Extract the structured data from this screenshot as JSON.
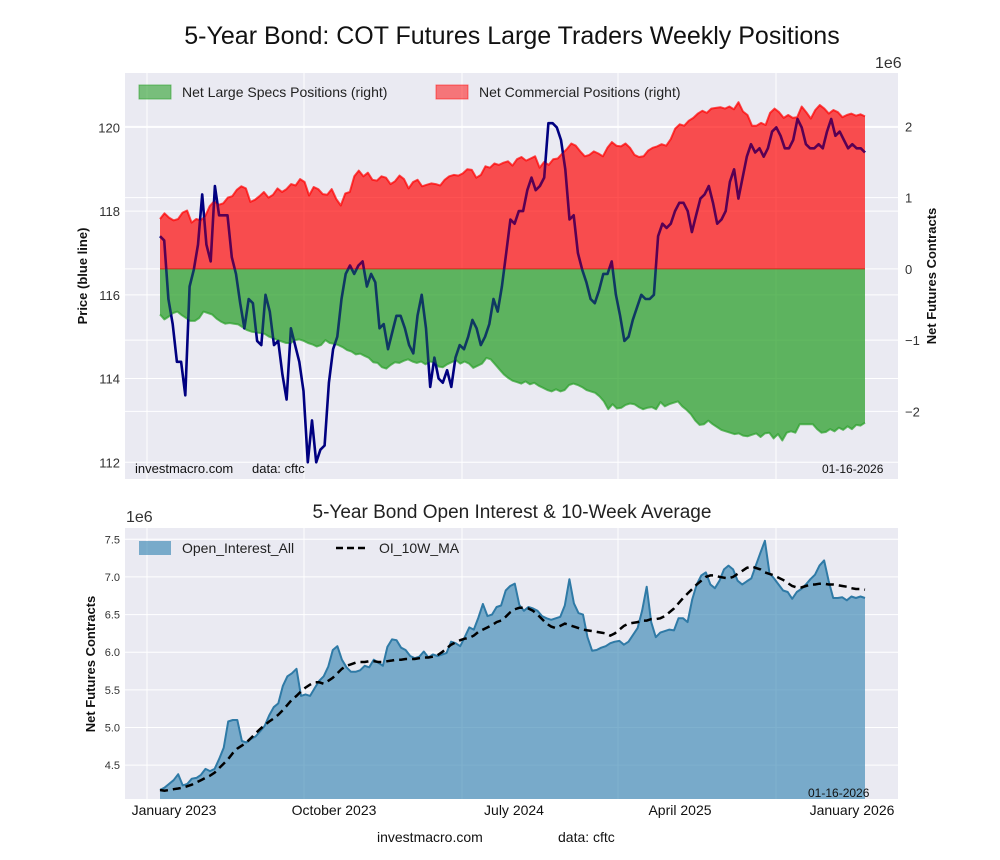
{
  "title": "5-Year Bond: COT Futures Large Traders Weekly Positions",
  "watermark": "investmacro.com",
  "data_source": "data: cftc",
  "date_stamp": "01-16-2026",
  "x_tick_labels": [
    "January 2023",
    "October 2023",
    "July 2024",
    "April 2025",
    "January 2026"
  ],
  "colors": {
    "price_line": "#000080",
    "large_specs": "#2ca02c",
    "commercial": "#ff0000",
    "open_interest": "#3a87b4",
    "ma": "#000000",
    "plot_bg": "#eaeaf2"
  },
  "chart_data": [
    {
      "type": "area",
      "title": "5-Year Bond: COT Futures Large Traders Weekly Positions",
      "ylabel_left": "Price (blue line)",
      "ylabel_right": "Net Futures Contracts",
      "right_axis_multiplier": "1e6",
      "ylim_left": [
        111.6,
        121.3
      ],
      "ylim_right": [
        -2.95,
        2.75
      ],
      "yticks_left": [
        "112",
        "114",
        "116",
        "118",
        "120"
      ],
      "yticks_right": [
        "-2",
        "-1",
        "0",
        "1",
        "2"
      ],
      "grid": true,
      "legend": {
        "position": "top-left",
        "entries": [
          "Net Large Specs Positions (right)",
          "Net Commercial Positions (right)"
        ]
      },
      "x_range": [
        "2023-01-03",
        "2026-01-13"
      ],
      "series": [
        {
          "name": "Net Commercial Positions (right)",
          "unit": "1e6 contracts",
          "values": [
            0.7,
            0.78,
            0.72,
            0.68,
            0.7,
            0.79,
            0.82,
            0.65,
            0.7,
            0.68,
            0.74,
            0.88,
            0.95,
            0.9,
            0.92,
            1.0,
            1.02,
            1.11,
            1.16,
            1.13,
            0.94,
            0.97,
            1.02,
            1.08,
            1.0,
            1.04,
            1.13,
            1.08,
            1.12,
            1.19,
            1.17,
            1.26,
            1.22,
            1.03,
            1.15,
            1.12,
            1.05,
            1.04,
            1.12,
            0.98,
            0.89,
            1.06,
            1.08,
            1.3,
            1.38,
            1.3,
            1.35,
            1.25,
            1.24,
            1.3,
            1.28,
            1.19,
            1.23,
            1.31,
            1.26,
            1.13,
            1.22,
            1.25,
            1.16,
            1.18,
            1.2,
            1.19,
            1.17,
            1.25,
            1.3,
            1.32,
            1.31,
            1.34,
            1.4,
            1.39,
            1.28,
            1.32,
            1.44,
            1.42,
            1.48,
            1.46,
            1.49,
            1.51,
            1.45,
            1.54,
            1.57,
            1.52,
            1.55,
            1.58,
            1.42,
            1.5,
            1.46,
            1.54,
            1.55,
            1.62,
            1.68,
            1.76,
            1.73,
            1.65,
            1.58,
            1.6,
            1.65,
            1.62,
            1.58,
            1.7,
            1.78,
            1.73,
            1.72,
            1.76,
            1.7,
            1.6,
            1.57,
            1.58,
            1.66,
            1.7,
            1.72,
            1.75,
            1.73,
            1.82,
            1.97,
            2.03,
            2.01,
            2.08,
            2.12,
            2.18,
            2.22,
            2.19,
            2.25,
            2.26,
            2.27,
            2.25,
            2.28,
            2.24,
            2.34,
            2.21,
            2.16,
            2.01,
            2.01,
            2.05,
            2.02,
            2.19,
            2.25,
            2.2,
            2.12,
            2.16,
            2.12,
            2.13,
            2.28,
            2.2,
            2.11,
            2.23,
            2.3,
            2.25,
            2.18,
            2.23,
            2.2,
            2.13,
            2.16,
            2.18,
            2.15,
            2.17,
            2.14
          ]
        },
        {
          "name": "Net Large Specs Positions (right)",
          "unit": "1e6 contracts",
          "values": [
            -0.64,
            -0.71,
            -0.67,
            -0.62,
            -0.6,
            -0.65,
            -0.69,
            -0.73,
            -0.73,
            -0.69,
            -0.6,
            -0.62,
            -0.64,
            -0.7,
            -0.74,
            -0.77,
            -0.76,
            -0.77,
            -0.78,
            -0.82,
            -0.86,
            -0.88,
            -0.89,
            -0.9,
            -0.91,
            -0.95,
            -0.97,
            -1.0,
            -1.02,
            -1.04,
            -1.04,
            -1.0,
            -0.99,
            -1.01,
            -1.04,
            -1.06,
            -1.09,
            -1.07,
            -1.0,
            -1.04,
            -1.05,
            -1.07,
            -1.1,
            -1.14,
            -1.16,
            -1.2,
            -1.19,
            -1.22,
            -1.25,
            -1.31,
            -1.32,
            -1.38,
            -1.4,
            -1.35,
            -1.31,
            -1.32,
            -1.29,
            -1.27,
            -1.3,
            -1.32,
            -1.3,
            -1.34,
            -1.3,
            -1.31,
            -1.37,
            -1.38,
            -1.34,
            -1.31,
            -1.28,
            -1.33,
            -1.3,
            -1.33,
            -1.39,
            -1.36,
            -1.33,
            -1.25,
            -1.27,
            -1.34,
            -1.41,
            -1.48,
            -1.53,
            -1.57,
            -1.59,
            -1.61,
            -1.58,
            -1.62,
            -1.6,
            -1.64,
            -1.67,
            -1.7,
            -1.72,
            -1.69,
            -1.72,
            -1.7,
            -1.63,
            -1.61,
            -1.63,
            -1.66,
            -1.7,
            -1.72,
            -1.74,
            -1.79,
            -1.86,
            -1.97,
            -1.9,
            -1.96,
            -1.95,
            -1.91,
            -1.89,
            -1.9,
            -1.94,
            -1.97,
            -1.95,
            -1.94,
            -1.97,
            -1.87,
            -1.93,
            -1.9,
            -1.88,
            -1.86,
            -1.93,
            -1.98,
            -2.04,
            -2.13,
            -2.19,
            -2.18,
            -2.13,
            -2.18,
            -2.22,
            -2.26,
            -2.28,
            -2.3,
            -2.32,
            -2.31,
            -2.34,
            -2.35,
            -2.33,
            -2.31,
            -2.36,
            -2.31,
            -2.3,
            -2.38,
            -2.32,
            -2.41,
            -2.3,
            -2.28,
            -2.3,
            -2.18,
            -2.18,
            -2.18,
            -2.18,
            -2.25,
            -2.3,
            -2.29,
            -2.25,
            -2.28,
            -2.23,
            -2.26,
            -2.21,
            -2.25,
            -2.19,
            -2.2,
            -2.16
          ]
        },
        {
          "name": "Price (blue line)",
          "unit": "price",
          "values": [
            117.4,
            117.3,
            115.9,
            115.3,
            114.4,
            114.4,
            113.6,
            116.2,
            116.6,
            117.2,
            118.4,
            117.2,
            116.8,
            118.6,
            117.9,
            117.9,
            117.9,
            116.9,
            116.5,
            115.8,
            115.2,
            115.9,
            115.8,
            114.9,
            114.8,
            116.0,
            115.6,
            114.8,
            114.9,
            114.1,
            113.5,
            115.2,
            114.8,
            114.4,
            113.7,
            112.0,
            113.0,
            112.0,
            112.3,
            112.4,
            113.9,
            114.7,
            115.0,
            115.9,
            116.5,
            116.7,
            116.5,
            116.7,
            116.8,
            116.2,
            116.5,
            116.3,
            115.2,
            115.3,
            114.7,
            115.1,
            115.5,
            115.5,
            115.2,
            114.8,
            114.6,
            115.5,
            116.0,
            115.2,
            113.8,
            114.5,
            114.0,
            113.9,
            114.2,
            113.8,
            114.5,
            114.8,
            114.7,
            115.0,
            115.4,
            115.2,
            114.8,
            115.0,
            115.3,
            115.9,
            115.6,
            116.2,
            117.0,
            117.8,
            117.7,
            118.0,
            118.0,
            118.5,
            118.8,
            118.5,
            118.6,
            118.8,
            120.1,
            120.1,
            120.0,
            119.7,
            119.0,
            117.8,
            117.9,
            117.0,
            116.6,
            116.3,
            115.9,
            115.8,
            116.1,
            116.5,
            116.5,
            116.8,
            116.0,
            115.5,
            114.9,
            115.0,
            115.4,
            115.7,
            116.0,
            115.9,
            115.9,
            116.0,
            117.4,
            117.7,
            117.6,
            117.7,
            118.0,
            118.2,
            118.2,
            118.0,
            117.5,
            117.9,
            118.3,
            118.4,
            118.6,
            118.2,
            117.7,
            117.8,
            118.0,
            118.7,
            119.0,
            118.3,
            118.8,
            119.3,
            119.6,
            119.4,
            119.5,
            119.3,
            119.5,
            119.9,
            120.0,
            119.8,
            119.5,
            119.5,
            119.7,
            120.2,
            120.0,
            119.6,
            119.5,
            119.5,
            119.6,
            119.5,
            119.9,
            120.2,
            119.8,
            119.9,
            119.7,
            119.5,
            119.6,
            119.5,
            119.5,
            119.4
          ]
        }
      ]
    },
    {
      "type": "area",
      "title": "5-Year Bond Open Interest & 10-Week Average",
      "ylabel": "Net Futures Contracts",
      "y_multiplier": "1e6",
      "ylim": [
        4.05,
        7.65
      ],
      "yticks": [
        "4.5",
        "5.0",
        "5.5",
        "6.0",
        "6.5",
        "7.0",
        "7.5"
      ],
      "grid": true,
      "legend": {
        "position": "top-left",
        "entries": [
          "Open_Interest_All",
          "OI_10W_MA"
        ]
      },
      "x_range": [
        "2023-01-03",
        "2026-01-13"
      ],
      "series": [
        {
          "name": "Open_Interest_All",
          "unit": "1e6 contracts",
          "values": [
            4.17,
            4.2,
            4.25,
            4.3,
            4.38,
            4.23,
            4.25,
            4.32,
            4.33,
            4.37,
            4.45,
            4.42,
            4.45,
            4.58,
            4.73,
            5.08,
            5.1,
            5.1,
            4.82,
            4.8,
            4.85,
            4.88,
            4.95,
            5.02,
            5.16,
            5.27,
            5.32,
            5.55,
            5.68,
            5.72,
            5.78,
            5.42,
            5.44,
            5.42,
            5.52,
            5.62,
            5.68,
            5.81,
            6.03,
            6.08,
            5.9,
            5.8,
            5.74,
            5.74,
            5.76,
            5.82,
            5.8,
            5.9,
            5.86,
            5.82,
            6.07,
            6.17,
            6.16,
            6.06,
            6.03,
            5.95,
            5.92,
            5.94,
            6.01,
            5.93,
            5.97,
            5.95,
            5.97,
            5.99,
            6.14,
            6.12,
            6.08,
            6.2,
            6.33,
            6.3,
            6.46,
            6.64,
            6.48,
            6.5,
            6.6,
            6.62,
            6.82,
            6.88,
            6.91,
            6.63,
            6.55,
            6.6,
            6.58,
            6.55,
            6.48,
            6.45,
            6.43,
            6.45,
            6.47,
            6.62,
            6.97,
            6.65,
            6.52,
            6.5,
            6.2,
            6.02,
            6.03,
            6.06,
            6.08,
            6.12,
            6.14,
            6.15,
            6.1,
            6.14,
            6.23,
            6.32,
            6.55,
            6.87,
            6.4,
            6.2,
            6.26,
            6.28,
            6.3,
            6.29,
            6.45,
            6.45,
            6.4,
            6.7,
            6.9,
            7.02,
            7.06,
            6.9,
            6.85,
            6.95,
            7.1,
            7.15,
            7.1,
            6.95,
            6.9,
            6.94,
            6.98,
            7.15,
            7.32,
            7.48,
            7.05,
            6.98,
            6.9,
            6.82,
            6.8,
            6.71,
            6.8,
            6.84,
            6.9,
            6.97,
            7.03,
            7.15,
            7.22,
            6.95,
            6.72,
            6.72,
            6.73,
            6.69,
            6.74,
            6.72,
            6.74,
            6.72
          ]
        },
        {
          "name": "OI_10W_MA",
          "unit": "1e6 contracts",
          "values": [
            4.17,
            4.16,
            4.17,
            4.18,
            4.19,
            4.2,
            4.22,
            4.24,
            4.27,
            4.3,
            4.33,
            4.36,
            4.4,
            4.46,
            4.52,
            4.58,
            4.66,
            4.72,
            4.76,
            4.8,
            4.86,
            4.92,
            4.98,
            5.03,
            5.08,
            5.12,
            5.17,
            5.23,
            5.3,
            5.37,
            5.42,
            5.48,
            5.53,
            5.57,
            5.6,
            5.6,
            5.58,
            5.62,
            5.66,
            5.72,
            5.78,
            5.82,
            5.84,
            5.86,
            5.87,
            5.87,
            5.88,
            5.88,
            5.87,
            5.87,
            5.88,
            5.89,
            5.9,
            5.9,
            5.91,
            5.91,
            5.91,
            5.92,
            5.93,
            5.93,
            5.94,
            5.96,
            6.0,
            6.05,
            6.1,
            6.13,
            6.16,
            6.18,
            6.19,
            6.22,
            6.27,
            6.3,
            6.33,
            6.36,
            6.4,
            6.42,
            6.47,
            6.53,
            6.57,
            6.59,
            6.59,
            6.58,
            6.55,
            6.5,
            6.44,
            6.38,
            6.34,
            6.32,
            6.35,
            6.38,
            6.36,
            6.34,
            6.32,
            6.3,
            6.29,
            6.28,
            6.27,
            6.26,
            6.25,
            6.22,
            6.25,
            6.3,
            6.35,
            6.38,
            6.39,
            6.4,
            6.42,
            6.42,
            6.44,
            6.44,
            6.45,
            6.48,
            6.53,
            6.58,
            6.65,
            6.72,
            6.78,
            6.84,
            6.9,
            6.95,
            7.0,
            7.02,
            7.02,
            7.0,
            6.99,
            6.98,
            7.0,
            7.04,
            7.08,
            7.12,
            7.14,
            7.12,
            7.1,
            7.06,
            7.04,
            7.02,
            6.99,
            6.96,
            6.92,
            6.88,
            6.86,
            6.86,
            6.88,
            6.9,
            6.9,
            6.91,
            6.91,
            6.9,
            6.9,
            6.89,
            6.88,
            6.87,
            6.85,
            6.84,
            6.84,
            6.83
          ]
        }
      ]
    }
  ]
}
